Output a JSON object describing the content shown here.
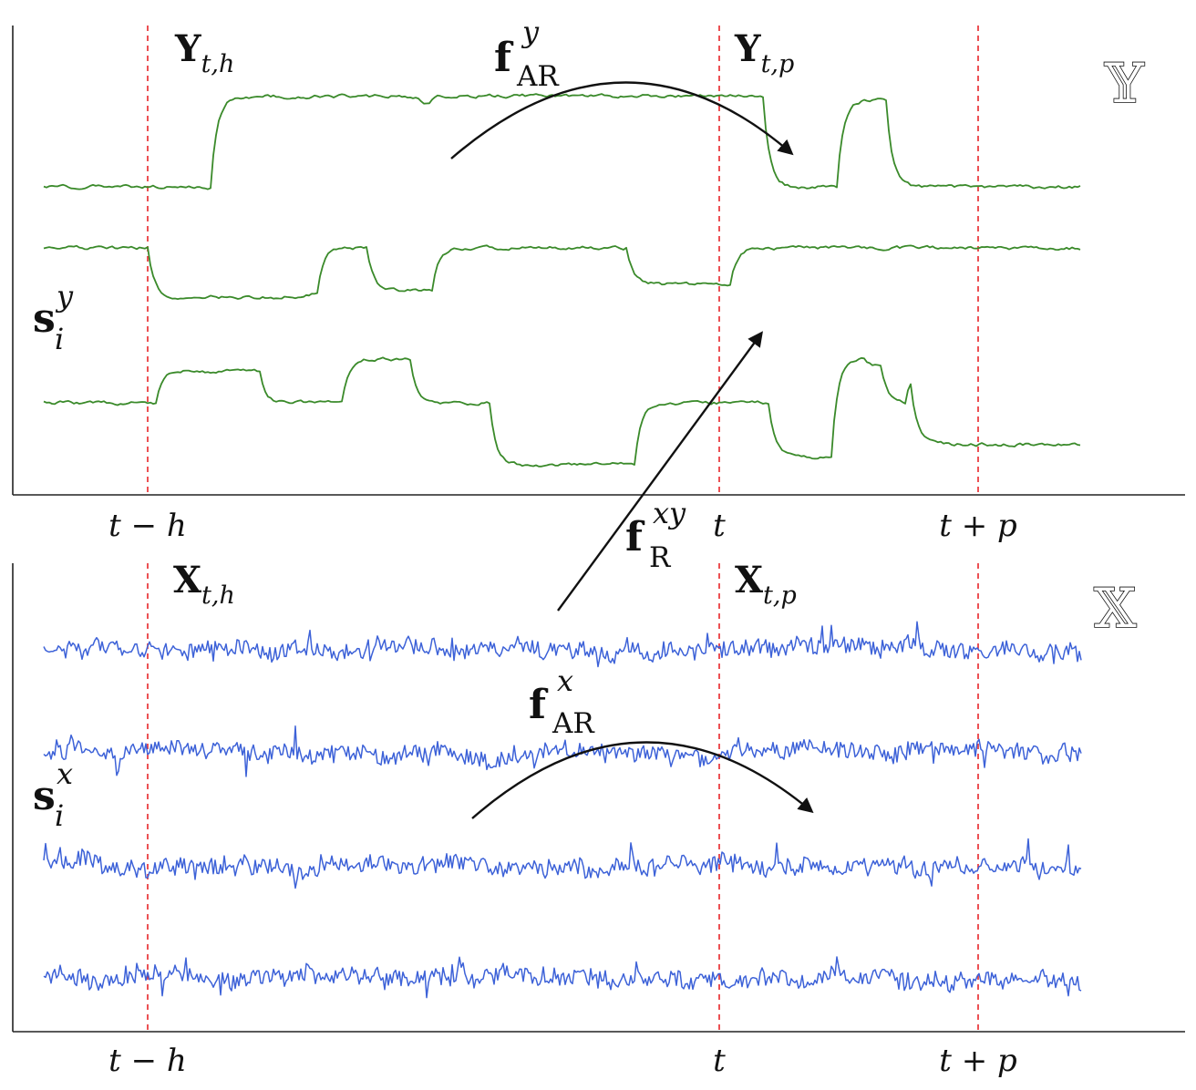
{
  "panels": {
    "top": {
      "space_label": "𝕐",
      "s_label": {
        "main": "s",
        "sup": "y",
        "sub": "i"
      },
      "segment_labels": [
        {
          "main": "Y",
          "sub": "t,h"
        },
        {
          "main": "Y",
          "sub": "t,p"
        }
      ],
      "tick_labels": [
        "t − h",
        "t",
        "t + p"
      ],
      "trace_color": "#3a8a2a",
      "trace_count": 3
    },
    "bottom": {
      "space_label": "𝕏",
      "s_label": {
        "main": "s",
        "sup": "x",
        "sub": "i"
      },
      "segment_labels": [
        {
          "main": "X",
          "sub": "t,h"
        },
        {
          "main": "X",
          "sub": "t,p"
        }
      ],
      "tick_labels": [
        "t − h",
        "t",
        "t + p"
      ],
      "trace_color": "#3d62d8",
      "trace_count": 4
    }
  },
  "functions": {
    "ar_y": {
      "main": "f",
      "sup": "y",
      "sub": "AR"
    },
    "ar_x": {
      "main": "f",
      "sup": "x",
      "sub": "AR"
    },
    "r_xy": {
      "main": "f",
      "sup": "xy",
      "sub": "R"
    }
  },
  "colors": {
    "marker_line": "#e8262a",
    "axis": "#222222",
    "arrow": "#111111"
  }
}
